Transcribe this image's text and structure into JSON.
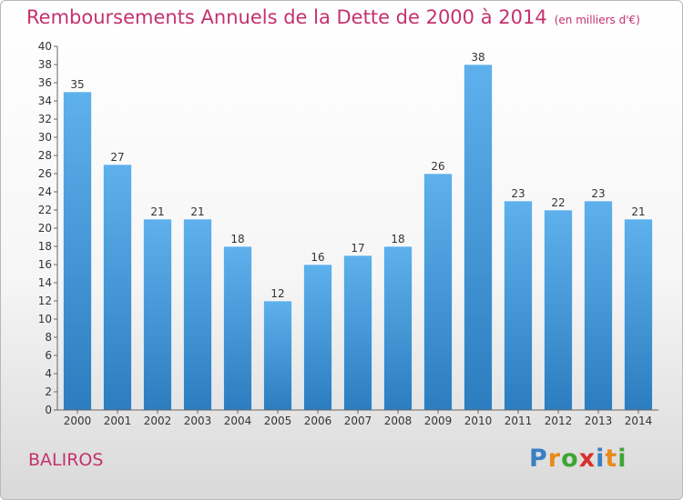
{
  "title": "Remboursements Annuels de la Dette de 2000 à 2014",
  "unit": "(en milliers d'€)",
  "place": "BALIROS",
  "logo": {
    "letters": [
      {
        "char": "P",
        "color": "#3a7fc4"
      },
      {
        "char": "r",
        "color": "#e88a1c"
      },
      {
        "char": "o",
        "color": "#3fa535"
      },
      {
        "char": "x",
        "color": "#d9302c"
      },
      {
        "char": "i",
        "color": "#3a7fc4"
      },
      {
        "char": "t",
        "color": "#e88a1c"
      },
      {
        "char": "i",
        "color": "#3fa535"
      }
    ]
  },
  "colors": {
    "accent": "#c4326d",
    "bar_top": "#5eb1ec",
    "bar_bottom": "#2c7dbf",
    "bar_edge": "#ffffff"
  },
  "chart_data": {
    "type": "bar",
    "categories": [
      "2000",
      "2001",
      "2002",
      "2003",
      "2004",
      "2005",
      "2006",
      "2007",
      "2008",
      "2009",
      "2010",
      "2011",
      "2012",
      "2013",
      "2014"
    ],
    "values": [
      35,
      27,
      21,
      21,
      18,
      12,
      16,
      17,
      18,
      26,
      38,
      23,
      22,
      23,
      21
    ],
    "ylim": [
      0,
      40
    ],
    "ytick_step": 2,
    "grid": false,
    "legend": "none"
  }
}
